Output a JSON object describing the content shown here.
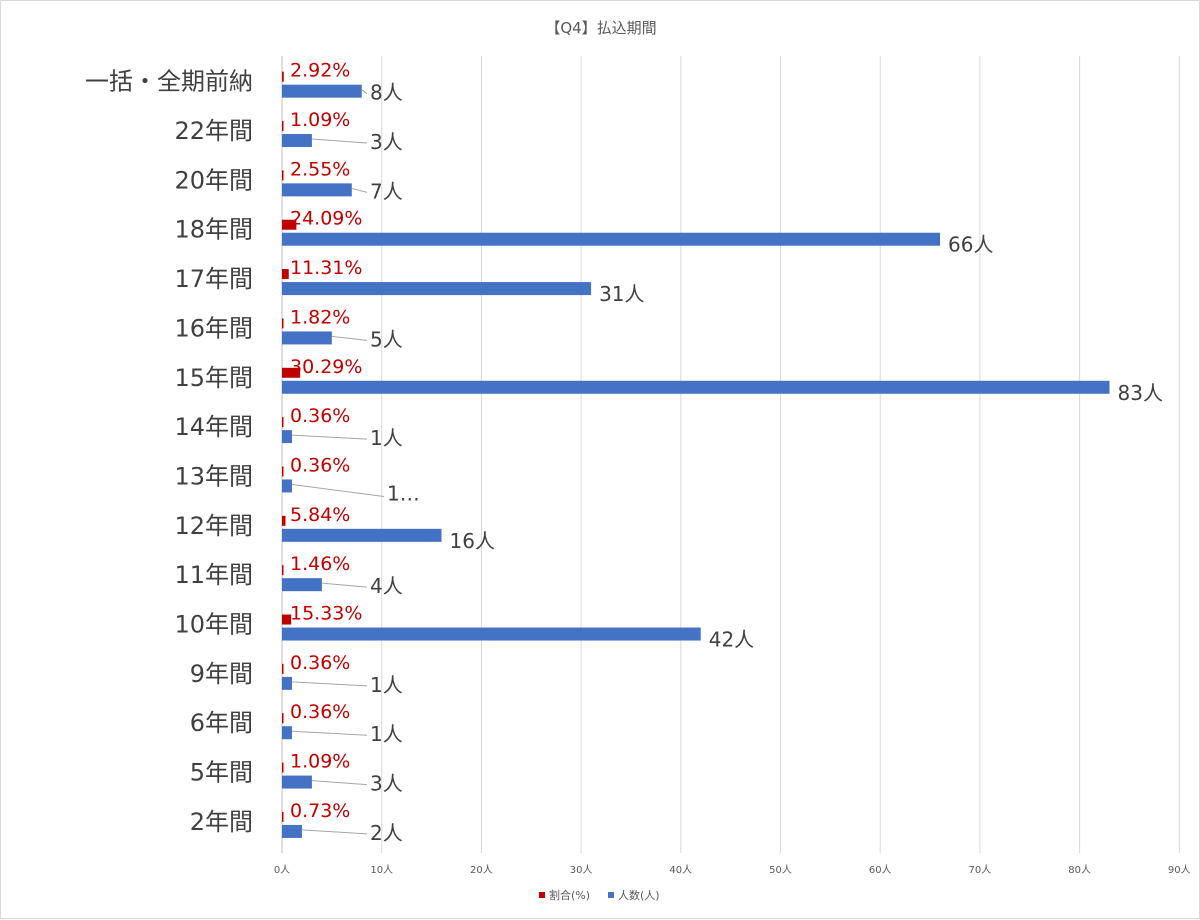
{
  "chart_data": {
    "type": "bar",
    "orientation": "horizontal",
    "title": "【Q4】払込期間",
    "categories": [
      "一括・全期前納",
      "22年間",
      "20年間",
      "18年間",
      "17年間",
      "16年間",
      "15年間",
      "14年間",
      "13年間",
      "12年間",
      "11年間",
      "10年間",
      "9年間",
      "6年間",
      "5年間",
      "2年間"
    ],
    "series": [
      {
        "name": "割合(%)",
        "color": "#c00000",
        "values": [
          2.92,
          1.09,
          2.55,
          24.09,
          11.31,
          1.82,
          30.29,
          0.36,
          0.36,
          5.84,
          1.46,
          15.33,
          0.36,
          0.36,
          1.09,
          0.73
        ],
        "labels": [
          "2.92%",
          "1.09%",
          "2.55%",
          "24.09%",
          "11.31%",
          "1.82%",
          "30.29%",
          "0.36%",
          "0.36%",
          "5.84%",
          "1.46%",
          "15.33%",
          "0.36%",
          "0.36%",
          "1.09%",
          "0.73%"
        ]
      },
      {
        "name": "人数(人)",
        "color": "#4472c4",
        "values": [
          8,
          3,
          7,
          66,
          31,
          5,
          83,
          1,
          1,
          16,
          4,
          42,
          1,
          1,
          3,
          2
        ],
        "labels": [
          "8人",
          "3人",
          "7人",
          "66人",
          "31人",
          "5人",
          "83人",
          "1人",
          "1…",
          "16人",
          "4人",
          "42人",
          "1人",
          "1人",
          "3人",
          "2人"
        ]
      }
    ],
    "xlim": [
      0,
      90
    ],
    "xticks": [
      "0人",
      "10人",
      "20人",
      "30人",
      "40人",
      "50人",
      "60人",
      "70人",
      "80人",
      "90人"
    ],
    "grid": "vertical",
    "legend": "bottom"
  }
}
